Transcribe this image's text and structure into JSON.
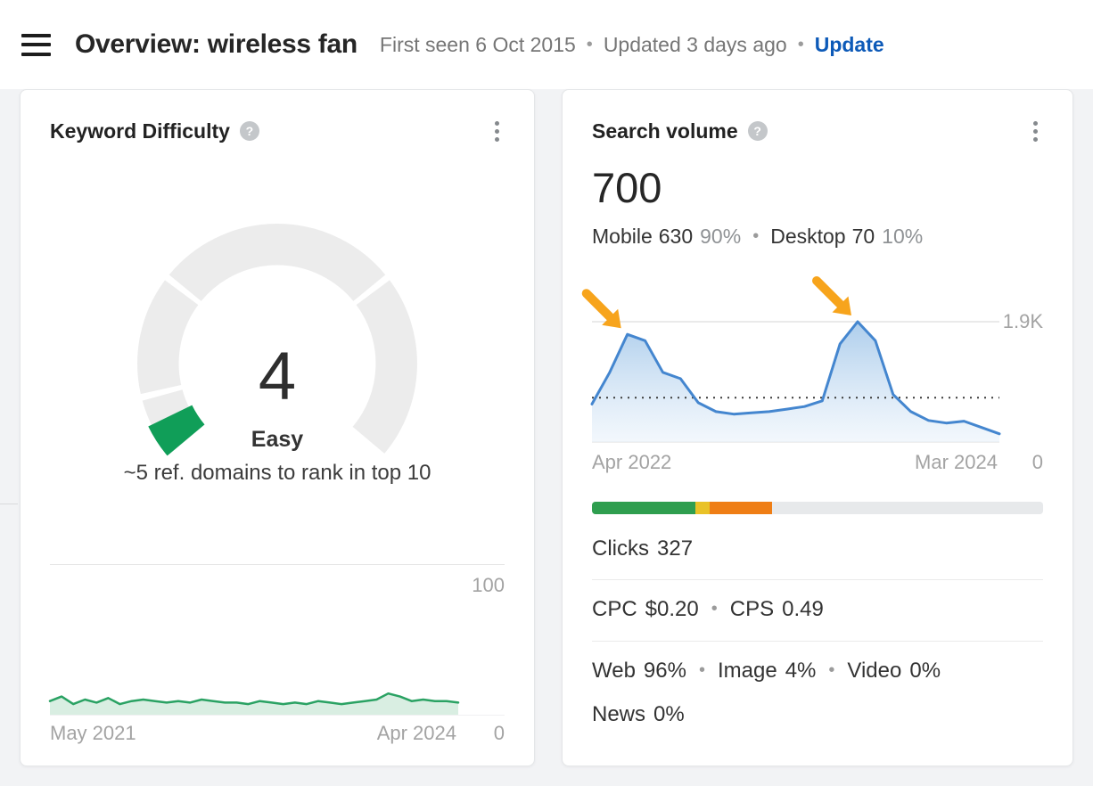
{
  "header": {
    "title": "Overview: wireless fan",
    "first_seen": "First seen 6 Oct 2015",
    "updated": "Updated 3 days ago",
    "update_action": "Update",
    "separator": "•"
  },
  "icons": {
    "help_glyph": "?"
  },
  "kd_card": {
    "title": "Keyword Difficulty",
    "score": "4",
    "score_label": "Easy",
    "description": "~5 ref. domains to rank in top 10"
  },
  "sv_card": {
    "title": "Search volume",
    "volume": "700",
    "separator": "•",
    "devices": {
      "mobile_label": "Mobile",
      "mobile_value": "630",
      "mobile_share": "90%",
      "desktop_label": "Desktop",
      "desktop_value": "70",
      "desktop_share": "10%"
    },
    "metrics": {
      "clicks_label": "Clicks",
      "clicks_value": "327",
      "cpc_label": "CPC",
      "cpc_value": "$0.20",
      "cps_label": "CPS",
      "cps_value": "0.49"
    },
    "serp": {
      "web_label": "Web",
      "web_value": "96%",
      "image_label": "Image",
      "image_value": "4%",
      "video_label": "Video",
      "video_value": "0%",
      "news_label": "News",
      "news_value": "0%"
    }
  },
  "chart_data": [
    {
      "id": "kd-gauge",
      "type": "gauge",
      "title": "Keyword Difficulty",
      "value": 4,
      "max": 100,
      "label": "Easy",
      "segment_boundaries": [
        10,
        30,
        70,
        100
      ],
      "value_color": "#109e58",
      "track_color": "#ececec"
    },
    {
      "id": "kd-history",
      "type": "area",
      "title": "Keyword Difficulty history",
      "ylim": [
        0,
        100
      ],
      "y_max_label": "100",
      "y_min_label": "0",
      "x_start_label": "May 2021",
      "x_end_label": "Apr 2024",
      "values": [
        9,
        12,
        7,
        10,
        8,
        11,
        7,
        9,
        10,
        9,
        8,
        9,
        8,
        10,
        9,
        8,
        8,
        7,
        9,
        8,
        7,
        8,
        7,
        9,
        8,
        7,
        8,
        9,
        10,
        14,
        12,
        9,
        10,
        9,
        9,
        8
      ],
      "line_color": "#2aa263",
      "line_width": 2.5,
      "fill": "#d9eee2"
    },
    {
      "id": "search-volume-trend",
      "type": "area",
      "title": "Search volume trend",
      "ylim": [
        0,
        1900
      ],
      "y_max_label": "1.9K",
      "y_min_label": "0",
      "x_start_label": "Apr 2022",
      "x_end_label": "Mar 2024",
      "x": [
        "Apr 2022",
        "May 2022",
        "Jun 2022",
        "Jul 2022",
        "Aug 2022",
        "Sep 2022",
        "Oct 2022",
        "Nov 2022",
        "Dec 2022",
        "Jan 2023",
        "Feb 2023",
        "Mar 2023",
        "Apr 2023",
        "May 2023",
        "Jun 2023",
        "Jul 2023",
        "Aug 2023",
        "Sep 2023",
        "Oct 2023",
        "Nov 2023",
        "Dec 2023",
        "Jan 2024",
        "Feb 2024",
        "Mar 2024"
      ],
      "values": [
        600,
        1100,
        1700,
        1600,
        1100,
        1000,
        620,
        480,
        440,
        460,
        480,
        520,
        560,
        650,
        1550,
        1900,
        1600,
        750,
        480,
        340,
        300,
        330,
        230,
        130
      ],
      "grid_value": 1900,
      "avg_value": 700,
      "baseline": true,
      "line_color": "#4486cf",
      "line_width": 3,
      "fill": "gradient",
      "annotations": {
        "arrow_color": "#f7a41c",
        "arrow_indexes": [
          2,
          15
        ]
      }
    },
    {
      "id": "clicks-bar",
      "type": "stacked-bar",
      "title": "Clicks breakdown",
      "segments": [
        {
          "name": "green",
          "color": "#2f9e4f",
          "pct": 23
        },
        {
          "name": "yellow",
          "color": "#e9c227",
          "pct": 3
        },
        {
          "name": "orange",
          "color": "#ef7e15",
          "pct": 14
        },
        {
          "name": "track",
          "color": "#e7e9eb",
          "pct": 60
        }
      ]
    }
  ]
}
